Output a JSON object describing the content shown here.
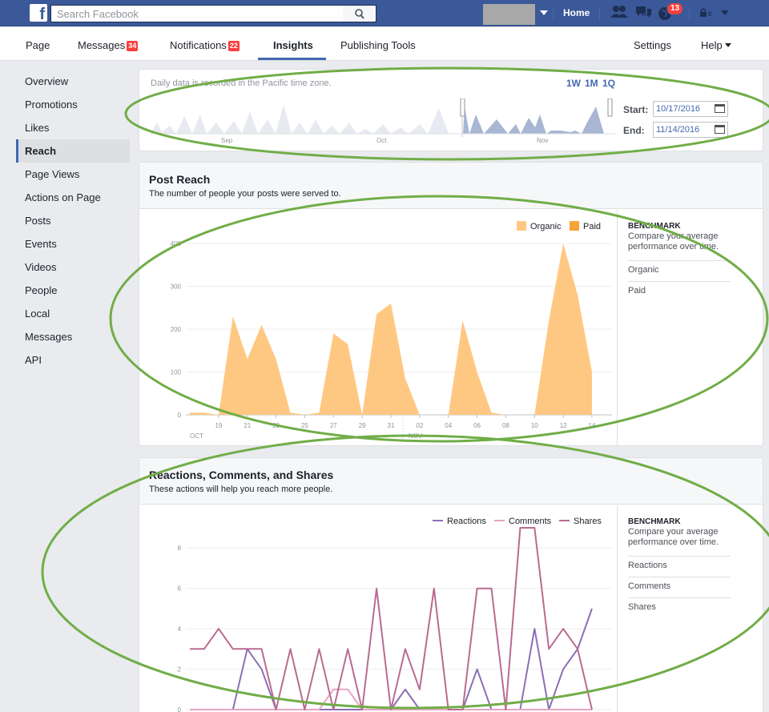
{
  "topbar": {
    "search_placeholder": "Search Facebook",
    "home_label": "Home",
    "notifications_count": "13"
  },
  "pagenav": {
    "page": "Page",
    "messages": "Messages",
    "messages_badge": "34",
    "notifications": "Notifications",
    "notifications_badge": "22",
    "insights": "Insights",
    "publishing_tools": "Publishing Tools",
    "settings": "Settings",
    "help": "Help"
  },
  "sidebar": {
    "items": [
      "Overview",
      "Promotions",
      "Likes",
      "Reach",
      "Page Views",
      "Actions on Page",
      "Posts",
      "Events",
      "Videos",
      "People",
      "Local",
      "Messages",
      "API"
    ],
    "active": "Reach"
  },
  "date_range": {
    "note": "Daily data is recorded in the Pacific time zone.",
    "presets": [
      "1W",
      "1M",
      "1Q"
    ],
    "start_label": "Start:",
    "start_value": "10/17/2016",
    "end_label": "End:",
    "end_value": "11/14/2016",
    "timeline_months": [
      "Sep",
      "Oct",
      "Nov"
    ]
  },
  "post_reach": {
    "title": "Post Reach",
    "subtitle": "The number of people your posts were served to.",
    "benchmark": {
      "title": "BENCHMARK",
      "desc": "Compare your average performance over time.",
      "items": [
        "Organic",
        "Paid"
      ]
    }
  },
  "rcs": {
    "title": "Reactions, Comments, and Shares",
    "subtitle": "These actions will help you reach more people.",
    "benchmark": {
      "title": "BENCHMARK",
      "desc": "Compare your average performance over time.",
      "items": [
        "Reactions",
        "Comments",
        "Shares"
      ]
    }
  },
  "chart_data": [
    {
      "type": "area",
      "title": "Post Reach",
      "x_ticks": [
        "19",
        "21",
        "23",
        "25",
        "27",
        "29",
        "31",
        "02",
        "04",
        "06",
        "08",
        "10",
        "12",
        "14"
      ],
      "x_month_labels": [
        "OCT",
        "NOV"
      ],
      "ylim": [
        0,
        400
      ],
      "y_ticks": [
        0,
        100,
        200,
        300,
        400
      ],
      "legend": "top-right",
      "x": [
        "10/17",
        "10/18",
        "10/19",
        "10/20",
        "10/21",
        "10/22",
        "10/23",
        "10/24",
        "10/25",
        "10/26",
        "10/27",
        "10/28",
        "10/29",
        "10/30",
        "10/31",
        "11/01",
        "11/02",
        "11/03",
        "11/04",
        "11/05",
        "11/06",
        "11/07",
        "11/08",
        "11/09",
        "11/10",
        "11/11",
        "11/12",
        "11/13",
        "11/14"
      ],
      "series": [
        {
          "name": "Organic",
          "color": "#ffc882",
          "values": [
            5,
            5,
            0,
            230,
            130,
            210,
            130,
            5,
            0,
            5,
            190,
            165,
            0,
            235,
            260,
            85,
            0,
            0,
            0,
            220,
            100,
            5,
            0,
            0,
            0,
            220,
            400,
            280,
            100
          ]
        },
        {
          "name": "Paid",
          "color": "#f7a437",
          "values": [
            0,
            0,
            0,
            0,
            0,
            0,
            0,
            0,
            0,
            0,
            0,
            0,
            0,
            0,
            0,
            0,
            0,
            0,
            0,
            0,
            0,
            0,
            0,
            0,
            0,
            0,
            0,
            0,
            0
          ]
        }
      ]
    },
    {
      "type": "line",
      "title": "Reactions, Comments, and Shares",
      "ylim": [
        0,
        9
      ],
      "y_ticks": [
        0,
        2,
        4,
        6,
        8
      ],
      "legend": "top-right",
      "x": [
        "10/17",
        "10/18",
        "10/19",
        "10/20",
        "10/21",
        "10/22",
        "10/23",
        "10/24",
        "10/25",
        "10/26",
        "10/27",
        "10/28",
        "10/29",
        "10/30",
        "10/31",
        "11/01",
        "11/02",
        "11/03",
        "11/04",
        "11/05",
        "11/06",
        "11/07",
        "11/08",
        "11/09",
        "11/10",
        "11/11",
        "11/12",
        "11/13",
        "11/14"
      ],
      "series": [
        {
          "name": "Reactions",
          "color": "#8c6eb4",
          "values": [
            0,
            0,
            0,
            0,
            3,
            2,
            0,
            0,
            0,
            0,
            0,
            0,
            0,
            0,
            0,
            1,
            0,
            0,
            0,
            0,
            2,
            0,
            0,
            0,
            4,
            0,
            2,
            3,
            5
          ]
        },
        {
          "name": "Comments",
          "color": "#e6a5c3",
          "values": [
            0,
            0,
            0,
            0,
            0,
            0,
            0,
            0,
            0,
            0,
            1,
            1,
            0,
            0,
            0,
            0,
            0,
            0,
            0,
            0,
            0,
            0,
            0,
            0,
            0,
            0,
            0,
            0,
            0
          ]
        },
        {
          "name": "Shares",
          "color": "#b96b90",
          "values": [
            3,
            3,
            4,
            3,
            3,
            3,
            0,
            3,
            0,
            3,
            0,
            3,
            0,
            6,
            0,
            3,
            1,
            6,
            0,
            0,
            6,
            6,
            0,
            9,
            9,
            3,
            4,
            3,
            0
          ]
        }
      ]
    }
  ]
}
